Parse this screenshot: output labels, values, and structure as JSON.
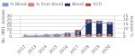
{
  "chart_data": {
    "type": "bar",
    "categories": [
      "2012",
      "2013",
      "2014",
      "2015",
      "2016",
      "2017",
      "2018",
      "2019",
      "2020"
    ],
    "stacked": true,
    "ylabel": "No. t991 isolates",
    "y2label": "Isolates %",
    "ylim": [
      0,
      30
    ],
    "yticks": [
      0,
      5,
      10,
      15,
      20,
      25,
      30
    ],
    "y2lim": [
      0,
      25
    ],
    "y2ticks": [
      0,
      5,
      10,
      15,
      20,
      25
    ],
    "grid": true,
    "legend": "upper left",
    "series": [
      {
        "name": "Blood",
        "color": "#1a2f5e",
        "values": [
          1,
          1,
          2,
          3,
          5,
          8,
          22,
          20,
          19
        ]
      },
      {
        "name": "SSTI",
        "color": "#c0392b",
        "values": [
          0,
          0,
          1,
          1,
          1,
          2,
          3,
          3,
          2
        ]
      },
      {
        "name": "% Blood",
        "type": "line",
        "axis": "y2",
        "color": "#7b9ed4",
        "marker": "circle",
        "values": [
          1.5,
          1.2,
          2.0,
          2.5,
          3.5,
          5.0,
          18.0,
          17.0,
          16.0
        ]
      },
      {
        "name": "% from blood",
        "type": "line",
        "axis": "y2",
        "color": "#e08070",
        "marker": "circle",
        "values": [
          0.5,
          0.8,
          1.0,
          1.2,
          1.0,
          1.5,
          2.0,
          2.5,
          2.0
        ]
      }
    ]
  }
}
